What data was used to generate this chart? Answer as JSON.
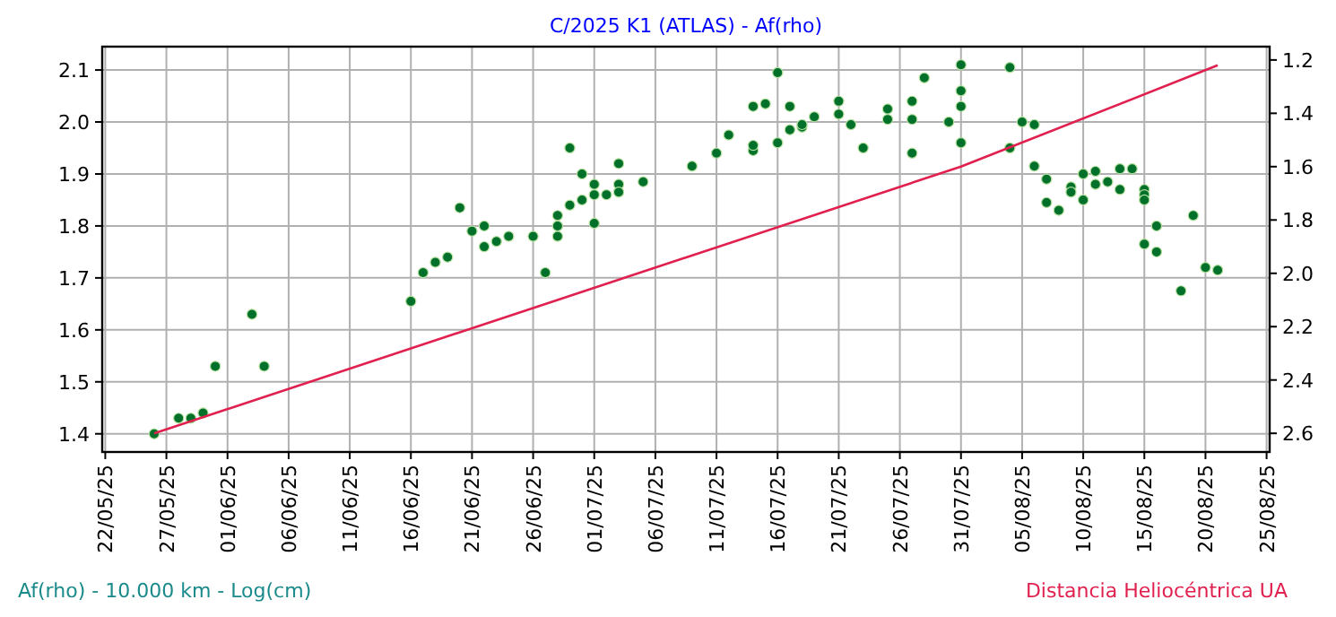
{
  "chart_data": {
    "type": "scatter",
    "title": "C/2025 K1 (ATLAS) - Af(rho)",
    "ylabel": "Af(rho) - 10.000 km - Log(cm)",
    "annotations": [
      "Distancia Heliocéntrica UA"
    ],
    "xlim": [
      "2025-05-21T18:00",
      "2025-08-25T06:00"
    ],
    "xticks": [
      {
        "value": "2025-05-22",
        "label": "22/05/25"
      },
      {
        "value": "2025-05-27",
        "label": "27/05/25"
      },
      {
        "value": "2025-06-01",
        "label": "01/06/25"
      },
      {
        "value": "2025-06-06",
        "label": "06/06/25"
      },
      {
        "value": "2025-06-11",
        "label": "11/06/25"
      },
      {
        "value": "2025-06-16",
        "label": "16/06/25"
      },
      {
        "value": "2025-06-21",
        "label": "21/06/25"
      },
      {
        "value": "2025-06-26",
        "label": "26/06/25"
      },
      {
        "value": "2025-07-01",
        "label": "01/07/25"
      },
      {
        "value": "2025-07-06",
        "label": "06/07/25"
      },
      {
        "value": "2025-07-11",
        "label": "11/07/25"
      },
      {
        "value": "2025-07-16",
        "label": "16/07/25"
      },
      {
        "value": "2025-07-21",
        "label": "21/07/25"
      },
      {
        "value": "2025-07-26",
        "label": "26/07/25"
      },
      {
        "value": "2025-07-31",
        "label": "31/07/25"
      },
      {
        "value": "2025-08-05",
        "label": "05/08/25"
      },
      {
        "value": "2025-08-10",
        "label": "10/08/25"
      },
      {
        "value": "2025-08-15",
        "label": "15/08/25"
      },
      {
        "value": "2025-08-20",
        "label": "20/08/25"
      },
      {
        "value": "2025-08-25",
        "label": "25/08/25"
      }
    ],
    "ylim": [
      1.365,
      2.145
    ],
    "yticks": [
      1.4,
      1.5,
      1.6,
      1.7,
      1.8,
      1.9,
      {
        "value": 2.0,
        "label": "2.0"
      },
      2.1
    ],
    "y2lim": [
      2.67,
      1.15
    ],
    "y2ticks": [
      1.2,
      1.4,
      1.6,
      1.8,
      {
        "value": 2.0,
        "label": "2.0"
      },
      2.2,
      2.4,
      2.6
    ],
    "grid": true,
    "marker": "circle",
    "series": [
      {
        "color": "#00702a",
        "x": [
          "2025-05-26",
          "2025-05-28",
          "2025-05-29",
          "2025-05-30",
          "2025-05-31",
          "2025-06-03",
          "2025-06-04",
          "2025-06-16",
          "2025-06-17",
          "2025-06-18",
          "2025-06-19",
          "2025-06-20",
          "2025-06-21",
          "2025-06-22",
          "2025-06-22",
          "2025-06-23",
          "2025-06-24",
          "2025-06-26",
          "2025-06-27",
          "2025-06-28",
          "2025-06-28",
          "2025-06-28",
          "2025-06-29",
          "2025-06-29",
          "2025-06-30",
          "2025-06-30",
          "2025-07-01",
          "2025-07-01",
          "2025-07-01",
          "2025-07-02",
          "2025-07-03",
          "2025-07-03",
          "2025-07-03",
          "2025-07-05",
          "2025-07-09",
          "2025-07-11",
          "2025-07-12",
          "2025-07-14",
          "2025-07-14",
          "2025-07-14",
          "2025-07-15",
          "2025-07-16",
          "2025-07-16",
          "2025-07-17",
          "2025-07-17",
          "2025-07-18",
          "2025-07-18",
          "2025-07-19",
          "2025-07-21",
          "2025-07-21",
          "2025-07-22",
          "2025-07-23",
          "2025-07-25",
          "2025-07-25",
          "2025-07-27",
          "2025-07-27",
          "2025-07-27",
          "2025-07-28",
          "2025-07-30",
          "2025-07-31",
          "2025-07-31",
          "2025-07-31",
          "2025-07-31",
          "2025-08-04",
          "2025-08-04",
          "2025-08-05",
          "2025-08-06",
          "2025-08-06",
          "2025-08-07",
          "2025-08-07",
          "2025-08-08",
          "2025-08-09",
          "2025-08-09",
          "2025-08-10",
          "2025-08-10",
          "2025-08-11",
          "2025-08-11",
          "2025-08-12",
          "2025-08-13",
          "2025-08-13",
          "2025-08-14",
          "2025-08-15",
          "2025-08-15",
          "2025-08-15",
          "2025-08-15",
          "2025-08-16",
          "2025-08-16",
          "2025-08-18",
          "2025-08-19",
          "2025-08-20",
          "2025-08-21"
        ],
        "values": [
          1.4,
          1.43,
          1.43,
          1.44,
          1.53,
          1.63,
          1.53,
          1.655,
          1.71,
          1.73,
          1.74,
          1.835,
          1.79,
          1.8,
          1.76,
          1.77,
          1.78,
          1.78,
          1.71,
          1.78,
          1.82,
          1.8,
          1.95,
          1.84,
          1.9,
          1.85,
          1.88,
          1.805,
          1.86,
          1.86,
          1.92,
          1.88,
          1.865,
          1.885,
          1.915,
          1.94,
          1.975,
          1.945,
          1.955,
          2.03,
          2.035,
          2.095,
          1.96,
          2.03,
          1.985,
          1.99,
          1.995,
          2.01,
          2.04,
          2.015,
          1.995,
          1.95,
          2.025,
          2.005,
          2.005,
          2.04,
          1.94,
          2.085,
          2.0,
          2.11,
          2.06,
          2.03,
          1.96,
          2.105,
          1.95,
          2.0,
          1.995,
          1.915,
          1.89,
          1.845,
          1.83,
          1.875,
          1.865,
          1.9,
          1.85,
          1.905,
          1.88,
          1.885,
          1.91,
          1.87,
          1.91,
          1.87,
          1.86,
          1.85,
          1.765,
          1.8,
          1.75,
          1.675,
          1.82,
          1.72,
          1.715
        ]
      },
      {
        "type": "line",
        "axis": "y2",
        "color": "#e0204f",
        "marker": "none",
        "line_style": "solid",
        "x": [
          "2025-05-26",
          "2025-06-26",
          "2025-07-31",
          "2025-08-21"
        ],
        "values": [
          2.6,
          2.13,
          1.6,
          1.22
        ]
      }
    ]
  }
}
